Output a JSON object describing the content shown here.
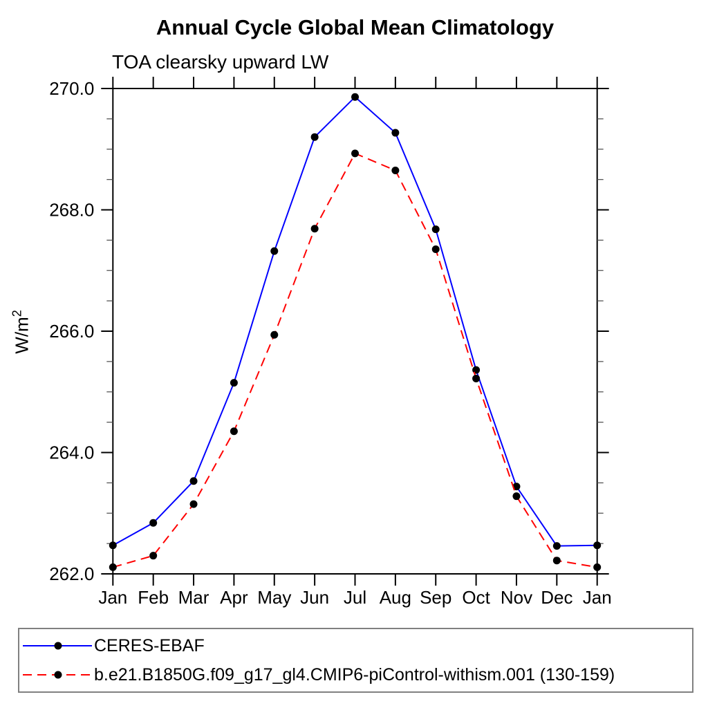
{
  "chart_data": {
    "type": "line",
    "title": "Annual Cycle Global Mean Climatology",
    "subtitle": "TOA clearsky upward LW",
    "ylabel": "W/m²",
    "ylabel_base": "W/m",
    "ylabel_exp": "2",
    "categories": [
      "Jan",
      "Feb",
      "Mar",
      "Apr",
      "May",
      "Jun",
      "Jul",
      "Aug",
      "Sep",
      "Oct",
      "Nov",
      "Dec",
      "Jan"
    ],
    "ylim": [
      262.0,
      270.0
    ],
    "ytick_major_step": 2.0,
    "ytick_minor_step": 0.5,
    "ytick_labels": [
      "262.0",
      "264.0",
      "266.0",
      "268.0",
      "270.0"
    ],
    "grid": false,
    "legend_position": "bottom-left-boxed",
    "axis_color": "#000000",
    "series": [
      {
        "name": "CERES-EBAF",
        "color": "#0000ff",
        "line_style": "solid",
        "marker": "filled-circle",
        "marker_color": "#000000",
        "values": [
          262.47,
          262.84,
          263.53,
          265.15,
          267.32,
          269.2,
          269.86,
          269.27,
          267.68,
          265.36,
          263.44,
          262.46,
          262.47
        ]
      },
      {
        "name": "b.e21.B1850G.f09_g17_gl4.CMIP6-piControl-withism.001 (130-159)",
        "color": "#ff0000",
        "line_style": "dashed",
        "marker": "filled-circle",
        "marker_color": "#000000",
        "values": [
          262.11,
          262.3,
          263.15,
          264.35,
          265.94,
          267.69,
          268.93,
          268.65,
          267.35,
          265.22,
          263.28,
          262.22,
          262.11
        ]
      }
    ]
  }
}
